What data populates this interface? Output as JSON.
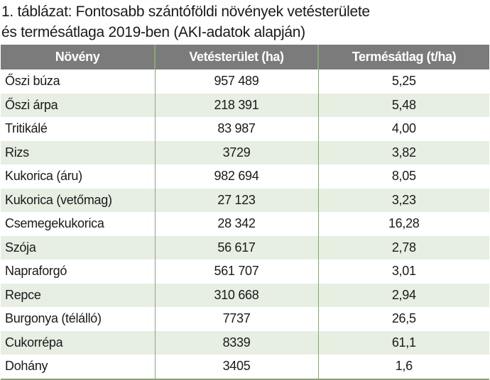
{
  "title": {
    "line1": "1. táblázat: Fontosabb szántóföldi növények vetésterülete",
    "line2": "és termésátlaga 2019-ben (AKI-adatok alapján)"
  },
  "table": {
    "headers": [
      "Növény",
      "Vetésterület (ha)",
      "Termésátlag (t/ha)"
    ],
    "rows": [
      [
        "Őszi búza",
        "957 489",
        "5,25"
      ],
      [
        "Őszi árpa",
        "218 391",
        "5,48"
      ],
      [
        "Tritikálé",
        "83 987",
        "4,00"
      ],
      [
        "Rizs",
        "3729",
        "3,82"
      ],
      [
        "Kukorica (áru)",
        "982 694",
        "8,05"
      ],
      [
        "Kukorica (vetőmag)",
        "27 123",
        "3,23"
      ],
      [
        "Csemegekukorica",
        "28 342",
        "16,28"
      ],
      [
        "Szója",
        "56 617",
        "2,78"
      ],
      [
        "Napraforgó",
        "561 707",
        "3,01"
      ],
      [
        "Repce",
        "310 668",
        "2,94"
      ],
      [
        "Burgonya (télálló)",
        "7737",
        "26,5"
      ],
      [
        "Cukorrépa",
        "8339",
        "61,1"
      ],
      [
        "Dohány",
        "3405",
        "1,6"
      ]
    ]
  },
  "colors": {
    "header_bg": "#7b7b7b",
    "alt_row": "#e7eee2",
    "border": "#8aa57a"
  }
}
